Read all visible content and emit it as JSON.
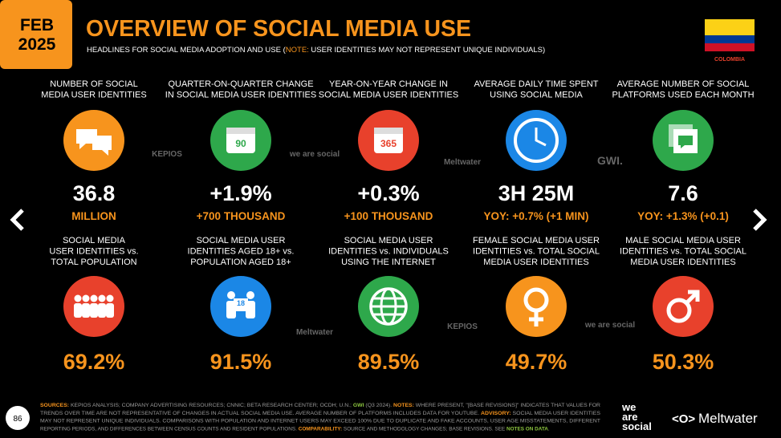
{
  "header": {
    "date": [
      "FEB",
      "2025"
    ],
    "title": "OVERVIEW OF SOCIAL MEDIA USE",
    "subtitle": [
      {
        "text": "HEADLINES FOR SOCIAL MEDIA ADOPTION AND USE (",
        "color": "#ffffff"
      },
      {
        "text": "NOTE:",
        "color": "#f7941d"
      },
      {
        "text": " USER IDENTITIES MAY NOT REPRESENT UNIQUE INDIVIDUALS)",
        "color": "#ffffff"
      }
    ],
    "country": "COLOMBIA"
  },
  "stats": [
    {
      "label": [
        "NUMBER OF SOCIAL",
        "MEDIA USER IDENTITIES"
      ],
      "value": "36.8",
      "sub": "MILLION",
      "color": "#f7941d"
    },
    {
      "label": [
        "QUARTER-ON-QUARTER CHANGE",
        "IN SOCIAL MEDIA USER IDENTITIES"
      ],
      "value": "+1.9%",
      "sub": "+700 THOUSAND",
      "color": "#2ea84b",
      "icon_text": "90"
    },
    {
      "label": [
        "YEAR-ON-YEAR CHANGE IN",
        "SOCIAL MEDIA USER IDENTITIES"
      ],
      "value": "+0.3%",
      "sub": "+100 THOUSAND",
      "color": "#e8412c",
      "icon_text": "365"
    },
    {
      "label": [
        "AVERAGE DAILY TIME SPENT",
        "USING SOCIAL MEDIA"
      ],
      "value": "3H 25M",
      "sub": "YOY: +0.7% (+1 MIN)",
      "color": "#1b87e6"
    },
    {
      "label": [
        "AVERAGE NUMBER OF SOCIAL",
        "PLATFORMS USED EACH MONTH"
      ],
      "value": "7.6",
      "sub": "YOY: +1.3% (+0.1)",
      "color": "#2ea84b"
    },
    {
      "label": [
        "SOCIAL MEDIA",
        "USER IDENTITIES vs.",
        "TOTAL POPULATION"
      ],
      "value": "69.2%",
      "color": "#e8412c"
    },
    {
      "label": [
        "SOCIAL MEDIA USER",
        "IDENTITIES AGED 18+ vs.",
        "POPULATION AGED 18+"
      ],
      "value": "91.5%",
      "color": "#1b87e6",
      "icon_text": "18"
    },
    {
      "label": [
        "SOCIAL MEDIA USER",
        "IDENTITIES vs. INDIVIDUALS",
        "USING THE INTERNET"
      ],
      "value": "89.5%",
      "color": "#2ea84b"
    },
    {
      "label": [
        "FEMALE SOCIAL MEDIA USER",
        "IDENTITIES vs. TOTAL SOCIAL",
        "MEDIA USER IDENTITIES"
      ],
      "value": "49.7%",
      "color": "#f7941d"
    },
    {
      "label": [
        "MALE SOCIAL MEDIA USER",
        "IDENTITIES vs. TOTAL SOCIAL",
        "MEDIA USER IDENTITIES"
      ],
      "value": "50.3%",
      "color": "#e8412c"
    }
  ],
  "watermarks": [
    "KEPIOS",
    "we are social",
    "Meltwater",
    "GWI.",
    "Meltwater",
    "KEPIOS",
    "we are social"
  ],
  "footer": [
    [
      {
        "text": "SOURCES:",
        "color": "#f7941d"
      },
      {
        "text": " KEPIOS ANALYSIS; COMPANY ADVERTISING RESOURCES; CNNIC; BETA RESEARCH CENTER; OCDH; U.N.; ",
        "color": "#9a9a9a"
      },
      {
        "text": "GWI",
        "color": "#8dc63f"
      },
      {
        "text": " (Q3 2024). ",
        "color": "#9a9a9a"
      },
      {
        "text": "NOTES:",
        "color": "#f7941d"
      },
      {
        "text": " WHERE PRESENT, \"[BASE REVISIONS]\" INDICATES THAT VALUES FOR",
        "color": "#9a9a9a"
      }
    ],
    [
      {
        "text": "TRENDS OVER TIME ARE NOT REPRESENTATIVE OF CHANGES IN ACTUAL SOCIAL MEDIA USE. AVERAGE NUMBER OF PLATFORMS INCLUDES DATA FOR YOUTUBE. ",
        "color": "#9a9a9a"
      },
      {
        "text": "ADVISORY:",
        "color": "#f7941d"
      },
      {
        "text": " SOCIAL MEDIA USER IDENTITIES",
        "color": "#9a9a9a"
      }
    ],
    [
      {
        "text": "MAY NOT REPRESENT UNIQUE INDIVIDUALS. COMPARISONS WITH POPULATION AND INTERNET USERS MAY EXCEED 100% DUE TO DUPLICATE AND FAKE ACCOUNTS, USER AGE MISSTATEMENTS, DIFFERENT",
        "color": "#9a9a9a"
      }
    ],
    [
      {
        "text": "REPORTING PERIODS, AND DIFFERENCES BETWEEN CENSUS COUNTS AND RESIDENT POPULATIONS. ",
        "color": "#9a9a9a"
      },
      {
        "text": "COMPARABILITY:",
        "color": "#f7941d"
      },
      {
        "text": " SOURCE AND METHODOLOGY CHANGES; BASE REVISIONS. SEE ",
        "color": "#9a9a9a"
      },
      {
        "text": "NOTES ON DATA",
        "color": "#8dc63f"
      },
      {
        "text": ".",
        "color": "#9a9a9a"
      }
    ]
  ],
  "page_number": "86",
  "logos": [
    "we",
    "are",
    "social",
    "Meltwater"
  ]
}
